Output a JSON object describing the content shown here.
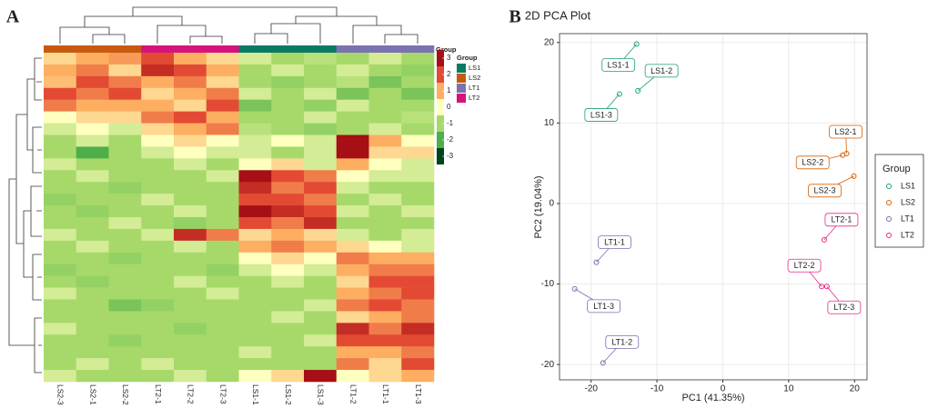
{
  "chart_data": [
    {
      "type": "heatmap",
      "panel_label": "A",
      "columns": [
        "LS2-3",
        "LS2-1",
        "LS2-2",
        "LT2-1",
        "LT2-2",
        "LT2-3",
        "LS1-1",
        "LS1-2",
        "LS1-3",
        "LT1-2",
        "LT1-1",
        "LT1-3"
      ],
      "column_groups": [
        "LS2",
        "LS2",
        "LS2",
        "LT2",
        "LT2",
        "LT2",
        "LS1",
        "LS1",
        "LS1",
        "LT1",
        "LT1",
        "LT1"
      ],
      "legend_title": "Group",
      "group_legend": [
        {
          "name": "LS1",
          "color": "#0b7a63"
        },
        {
          "name": "LS2",
          "color": "#c85a10"
        },
        {
          "name": "LT1",
          "color": "#7b72b0"
        },
        {
          "name": "LT2",
          "color": "#d6137a"
        }
      ],
      "zticks": [
        3,
        2,
        1,
        0,
        -1,
        -2,
        -3
      ],
      "colors": [
        "#a50f15",
        "#e34a33",
        "#fdae61",
        "#ffffbf",
        "#a6d96a",
        "#4daf4a",
        "#00441b"
      ],
      "values": [
        [
          0.5,
          1,
          1.2,
          2,
          1,
          0.5,
          -0.5,
          -1,
          -0.8,
          -1,
          -0.5,
          -1
        ],
        [
          1,
          1.5,
          0.5,
          2.5,
          2,
          1,
          -1,
          -0.5,
          -1,
          -0.5,
          -1,
          -1.2
        ],
        [
          0.8,
          2,
          1.5,
          1,
          1.5,
          0.5,
          -1,
          -1.2,
          -1,
          -0.8,
          -1.5,
          -1
        ],
        [
          2,
          1.5,
          2,
          0.5,
          1,
          1.5,
          -0.5,
          -1,
          -0.5,
          -1.5,
          -1,
          -1.5
        ],
        [
          1.5,
          1,
          1,
          1,
          0.5,
          2,
          -1.5,
          -1,
          -1.2,
          -0.5,
          -1,
          -1
        ],
        [
          0,
          0.5,
          0.5,
          1.5,
          2,
          1,
          -1,
          -1,
          -0.5,
          -1,
          -1,
          -0.8
        ],
        [
          -0.5,
          0,
          -0.5,
          0.5,
          1,
          1.5,
          -0.8,
          -1,
          -1.2,
          -1,
          -0.5,
          -1
        ],
        [
          -1,
          -0.5,
          -1,
          0,
          0.5,
          0,
          -0.5,
          0,
          -0.5,
          3,
          1,
          0
        ],
        [
          -1,
          -2,
          -1,
          -0.5,
          0,
          -0.5,
          -0.5,
          -1,
          -0.5,
          3,
          0.5,
          0.5
        ],
        [
          -0.5,
          -1,
          -1,
          -1,
          -0.5,
          -1,
          0,
          0.5,
          -0.5,
          1,
          0,
          -0.5
        ],
        [
          -1,
          -0.5,
          -1,
          -1,
          -1,
          -0.5,
          3,
          2,
          1.5,
          0,
          -0.5,
          -0.5
        ],
        [
          -1,
          -1,
          -1.2,
          -1,
          -1,
          -1,
          2.5,
          1.5,
          2,
          -0.5,
          -1,
          -1
        ],
        [
          -1.2,
          -1,
          -1,
          -0.5,
          -1,
          -1,
          2,
          2,
          1.5,
          -1,
          -0.5,
          -1
        ],
        [
          -1,
          -1.2,
          -1,
          -1,
          -0.5,
          -1,
          3,
          2.5,
          2,
          -0.5,
          -1,
          -0.5
        ],
        [
          -1,
          -1,
          -0.5,
          -1,
          -1.2,
          -1,
          2,
          1.5,
          2.5,
          -1,
          -1,
          -1
        ],
        [
          -0.5,
          -1,
          -1,
          -0.5,
          2.5,
          1.5,
          0.5,
          1,
          0.5,
          -0.5,
          -1,
          -0.5
        ],
        [
          -1,
          -0.5,
          -1,
          -1,
          -0.5,
          -1,
          1,
          1.5,
          1,
          0.5,
          0,
          -0.5
        ],
        [
          -1,
          -1,
          -1.2,
          -1,
          -1,
          -1,
          0,
          0.5,
          0,
          1.5,
          1,
          1
        ],
        [
          -1.2,
          -1,
          -1,
          -1,
          -1,
          -1.2,
          -0.5,
          0,
          -0.5,
          1,
          1.5,
          1.5
        ],
        [
          -1,
          -1.2,
          -1,
          -1,
          -0.5,
          -1,
          -1,
          -0.5,
          -1,
          0.5,
          2,
          2
        ],
        [
          -0.5,
          -1,
          -1,
          -1,
          -1,
          -0.5,
          -1,
          -1,
          -1,
          1,
          1.5,
          2
        ],
        [
          -1,
          -1,
          -1.5,
          -1.2,
          -1,
          -1,
          -1,
          -1,
          -0.5,
          1.5,
          2,
          1.5
        ],
        [
          -1,
          -1,
          -1,
          -1,
          -1,
          -1,
          -1,
          -0.5,
          -1,
          0.5,
          1,
          1.5
        ],
        [
          -0.5,
          -1,
          -1,
          -1,
          -1.2,
          -1,
          -1,
          -1,
          -1,
          2.5,
          1.5,
          2.5
        ],
        [
          -1,
          -1,
          -1.2,
          -1,
          -1,
          -1,
          -1,
          -1,
          -0.5,
          2,
          2,
          2
        ],
        [
          -1,
          -1,
          -1,
          -1,
          -1,
          -1,
          -0.5,
          -1,
          -1,
          1,
          1,
          1.5
        ],
        [
          -1,
          -0.5,
          -1,
          -0.5,
          -1,
          -1,
          -1,
          -1,
          -1,
          1.5,
          0.5,
          2
        ],
        [
          -0.5,
          -1,
          -1,
          -1,
          -0.5,
          -1,
          0,
          0.5,
          3,
          0,
          0.5,
          1
        ]
      ]
    },
    {
      "type": "scatter",
      "panel_label": "B",
      "title": "2D PCA Plot",
      "xlabel": "PC1 (41.35%)",
      "ylabel": "PC2 (19.04%)",
      "xlim": [
        -24.8,
        21.9
      ],
      "ylim": [
        -21.9,
        21.1
      ],
      "xticks": [
        -20,
        -10,
        0,
        10,
        20
      ],
      "yticks": [
        -20,
        -10,
        0,
        10,
        20
      ],
      "grid": true,
      "legend_title": "Group",
      "series": [
        {
          "name": "LS1",
          "color": "#1b9e77",
          "x": [
            -13.1,
            -12.9,
            -15.7
          ],
          "y": [
            19.8,
            14.0,
            13.6
          ],
          "labels": [
            "LS1-1",
            "LS1-2",
            "LS1-3"
          ]
        },
        {
          "name": "LS2",
          "color": "#d95f02",
          "x": [
            18.8,
            18.2,
            19.9
          ],
          "y": [
            6.2,
            6.0,
            3.4
          ],
          "labels": [
            "LS2-1",
            "LS2-2",
            "LS2-3"
          ]
        },
        {
          "name": "LT1",
          "color": "#7570b3",
          "x": [
            -19.2,
            -18.2,
            -22.5
          ],
          "y": [
            -7.3,
            -19.8,
            -10.6
          ],
          "labels": [
            "LT1-1",
            "LT1-2",
            "LT1-3"
          ]
        },
        {
          "name": "LT2",
          "color": "#e7298a",
          "x": [
            15.4,
            15.0,
            15.8
          ],
          "y": [
            -4.5,
            -10.3,
            -10.3
          ],
          "labels": [
            "LT2-1",
            "LT2-2",
            "LT2-3"
          ]
        }
      ]
    }
  ]
}
